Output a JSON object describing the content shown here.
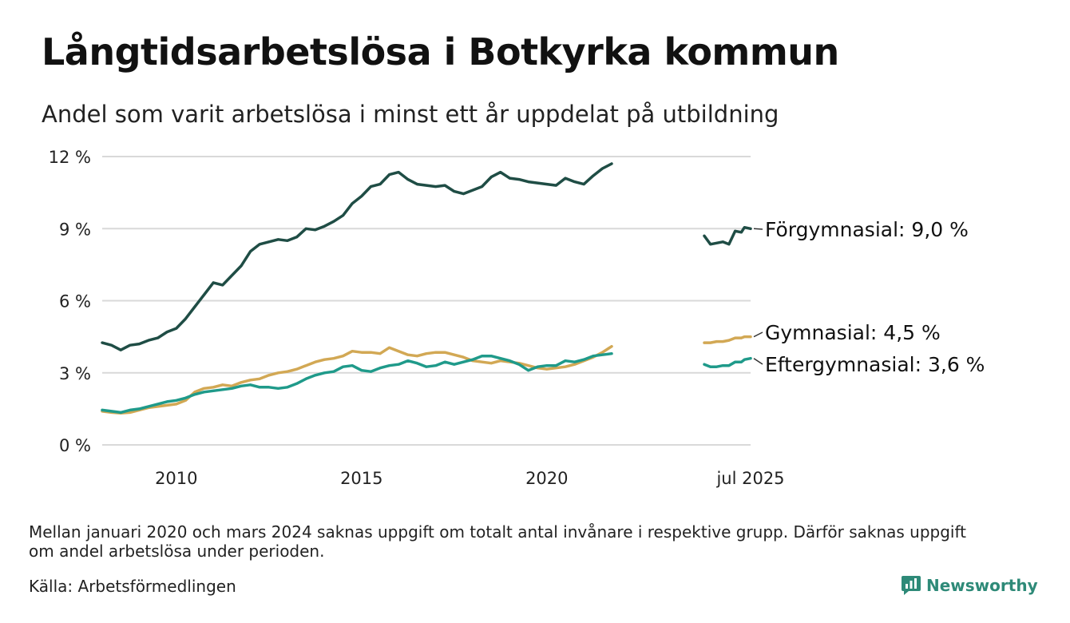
{
  "title": "Långtidsarbetslösa i Botkyrka kommun",
  "subtitle": "Andel som varit arbetslösa i minst ett år uppdelat på utbildning",
  "note": "Mellan januari 2020 och mars 2024 saknas uppgift om totalt antal invånare i respektive grupp. Därför saknas uppgift om andel arbetslösa under perioden.",
  "source": "Källa: Arbetsförmedlingen",
  "brand": {
    "name": "Newsworthy",
    "icon": "newsworthy-logo-icon",
    "color": "#2e8a78"
  },
  "chart_data": {
    "type": "line",
    "title": "Långtidsarbetslösa i Botkyrka kommun",
    "subtitle": "Andel som varit arbetslösa i minst ett år uppdelat på utbildning",
    "x_range": [
      "2008-01",
      "2025-07"
    ],
    "x_ticks": [
      {
        "date": "2010-01",
        "label": "2010"
      },
      {
        "date": "2015-01",
        "label": "2015"
      },
      {
        "date": "2020-01",
        "label": "2020"
      },
      {
        "date": "2025-07",
        "label": "jul 2025"
      }
    ],
    "ylim": [
      0,
      12
    ],
    "y_ticks": [
      {
        "value": 0,
        "label": "0 %"
      },
      {
        "value": 3,
        "label": "3 %"
      },
      {
        "value": 6,
        "label": "6 %"
      },
      {
        "value": 9,
        "label": "9 %"
      },
      {
        "value": 12,
        "label": "12 %"
      }
    ],
    "grid": "horizontal",
    "legend": "direct labels at right",
    "series": [
      {
        "name": "Förgymnasial",
        "label": "Förgymnasial: 9,0 %",
        "color": "#1f4d45",
        "segments": [
          [
            [
              "2008-01",
              4.25
            ],
            [
              "2008-04",
              4.15
            ],
            [
              "2008-07",
              3.95
            ],
            [
              "2008-10",
              4.15
            ],
            [
              "2009-01",
              4.2
            ],
            [
              "2009-04",
              4.35
            ],
            [
              "2009-07",
              4.45
            ],
            [
              "2009-10",
              4.7
            ],
            [
              "2010-01",
              4.85
            ],
            [
              "2010-04",
              5.25
            ],
            [
              "2010-07",
              5.75
            ],
            [
              "2010-10",
              6.25
            ],
            [
              "2011-01",
              6.75
            ],
            [
              "2011-04",
              6.65
            ],
            [
              "2011-07",
              7.05
            ],
            [
              "2011-10",
              7.45
            ],
            [
              "2012-01",
              8.05
            ],
            [
              "2012-04",
              8.35
            ],
            [
              "2012-07",
              8.45
            ],
            [
              "2012-10",
              8.55
            ],
            [
              "2013-01",
              8.5
            ],
            [
              "2013-04",
              8.65
            ],
            [
              "2013-07",
              9.0
            ],
            [
              "2013-10",
              8.95
            ],
            [
              "2014-01",
              9.1
            ],
            [
              "2014-04",
              9.3
            ],
            [
              "2014-07",
              9.55
            ],
            [
              "2014-10",
              10.05
            ],
            [
              "2015-01",
              10.35
            ],
            [
              "2015-04",
              10.75
            ],
            [
              "2015-07",
              10.85
            ],
            [
              "2015-10",
              11.25
            ],
            [
              "2016-01",
              11.35
            ],
            [
              "2016-04",
              11.05
            ],
            [
              "2016-07",
              10.85
            ],
            [
              "2016-10",
              10.8
            ],
            [
              "2017-01",
              10.75
            ],
            [
              "2017-04",
              10.8
            ],
            [
              "2017-07",
              10.55
            ],
            [
              "2017-10",
              10.45
            ],
            [
              "2018-01",
              10.6
            ],
            [
              "2018-04",
              10.75
            ],
            [
              "2018-07",
              11.15
            ],
            [
              "2018-10",
              11.35
            ],
            [
              "2019-01",
              11.1
            ],
            [
              "2019-04",
              11.05
            ],
            [
              "2019-07",
              10.95
            ],
            [
              "2019-10",
              10.9
            ],
            [
              "2020-01",
              10.85
            ],
            [
              "2020-04",
              10.8
            ],
            [
              "2020-07",
              11.1
            ],
            [
              "2020-10",
              10.95
            ],
            [
              "2021-01",
              10.85
            ],
            [
              "2021-04",
              11.2
            ],
            [
              "2021-07",
              11.5
            ],
            [
              "2021-10",
              11.7
            ]
          ],
          [
            [
              "2024-04",
              8.7
            ],
            [
              "2024-06",
              8.35
            ],
            [
              "2024-08",
              8.4
            ],
            [
              "2024-10",
              8.45
            ],
            [
              "2024-12",
              8.35
            ],
            [
              "2025-02",
              8.9
            ],
            [
              "2025-04",
              8.85
            ],
            [
              "2025-05",
              9.05
            ],
            [
              "2025-07",
              9.0
            ]
          ]
        ]
      },
      {
        "name": "Gymnasial",
        "label": "Gymnasial: 4,5 %",
        "color": "#d2a854",
        "segments": [
          [
            [
              "2008-01",
              1.4
            ],
            [
              "2008-04",
              1.35
            ],
            [
              "2008-07",
              1.32
            ],
            [
              "2008-10",
              1.35
            ],
            [
              "2009-01",
              1.45
            ],
            [
              "2009-04",
              1.55
            ],
            [
              "2009-07",
              1.6
            ],
            [
              "2009-10",
              1.65
            ],
            [
              "2010-01",
              1.7
            ],
            [
              "2010-04",
              1.85
            ],
            [
              "2010-07",
              2.2
            ],
            [
              "2010-10",
              2.35
            ],
            [
              "2011-01",
              2.4
            ],
            [
              "2011-04",
              2.5
            ],
            [
              "2011-07",
              2.45
            ],
            [
              "2011-10",
              2.6
            ],
            [
              "2012-01",
              2.7
            ],
            [
              "2012-04",
              2.75
            ],
            [
              "2012-07",
              2.9
            ],
            [
              "2012-10",
              3.0
            ],
            [
              "2013-01",
              3.05
            ],
            [
              "2013-04",
              3.15
            ],
            [
              "2013-07",
              3.3
            ],
            [
              "2013-10",
              3.45
            ],
            [
              "2014-01",
              3.55
            ],
            [
              "2014-04",
              3.6
            ],
            [
              "2014-07",
              3.7
            ],
            [
              "2014-10",
              3.9
            ],
            [
              "2015-01",
              3.85
            ],
            [
              "2015-04",
              3.85
            ],
            [
              "2015-07",
              3.8
            ],
            [
              "2015-10",
              4.05
            ],
            [
              "2016-01",
              3.9
            ],
            [
              "2016-04",
              3.75
            ],
            [
              "2016-07",
              3.7
            ],
            [
              "2016-10",
              3.8
            ],
            [
              "2017-01",
              3.85
            ],
            [
              "2017-04",
              3.85
            ],
            [
              "2017-07",
              3.75
            ],
            [
              "2017-10",
              3.65
            ],
            [
              "2018-01",
              3.5
            ],
            [
              "2018-04",
              3.45
            ],
            [
              "2018-07",
              3.4
            ],
            [
              "2018-10",
              3.5
            ],
            [
              "2019-01",
              3.45
            ],
            [
              "2019-04",
              3.4
            ],
            [
              "2019-07",
              3.3
            ],
            [
              "2019-10",
              3.2
            ],
            [
              "2020-01",
              3.15
            ],
            [
              "2020-04",
              3.2
            ],
            [
              "2020-07",
              3.25
            ],
            [
              "2020-10",
              3.35
            ],
            [
              "2021-01",
              3.5
            ],
            [
              "2021-04",
              3.65
            ],
            [
              "2021-07",
              3.85
            ],
            [
              "2021-10",
              4.1
            ]
          ],
          [
            [
              "2024-04",
              4.25
            ],
            [
              "2024-06",
              4.25
            ],
            [
              "2024-08",
              4.3
            ],
            [
              "2024-10",
              4.3
            ],
            [
              "2024-12",
              4.35
            ],
            [
              "2025-02",
              4.45
            ],
            [
              "2025-04",
              4.45
            ],
            [
              "2025-05",
              4.5
            ],
            [
              "2025-07",
              4.5
            ]
          ]
        ]
      },
      {
        "name": "Eftergymnasial",
        "label": "Eftergymnasial: 3,6 %",
        "color": "#1f9a8a",
        "segments": [
          [
            [
              "2008-01",
              1.45
            ],
            [
              "2008-04",
              1.4
            ],
            [
              "2008-07",
              1.35
            ],
            [
              "2008-10",
              1.45
            ],
            [
              "2009-01",
              1.5
            ],
            [
              "2009-04",
              1.6
            ],
            [
              "2009-07",
              1.7
            ],
            [
              "2009-10",
              1.8
            ],
            [
              "2010-01",
              1.85
            ],
            [
              "2010-04",
              1.95
            ],
            [
              "2010-07",
              2.1
            ],
            [
              "2010-10",
              2.2
            ],
            [
              "2011-01",
              2.25
            ],
            [
              "2011-04",
              2.3
            ],
            [
              "2011-07",
              2.35
            ],
            [
              "2011-10",
              2.45
            ],
            [
              "2012-01",
              2.5
            ],
            [
              "2012-04",
              2.4
            ],
            [
              "2012-07",
              2.4
            ],
            [
              "2012-10",
              2.35
            ],
            [
              "2013-01",
              2.4
            ],
            [
              "2013-04",
              2.55
            ],
            [
              "2013-07",
              2.75
            ],
            [
              "2013-10",
              2.9
            ],
            [
              "2014-01",
              3.0
            ],
            [
              "2014-04",
              3.05
            ],
            [
              "2014-07",
              3.25
            ],
            [
              "2014-10",
              3.3
            ],
            [
              "2015-01",
              3.1
            ],
            [
              "2015-04",
              3.05
            ],
            [
              "2015-07",
              3.2
            ],
            [
              "2015-10",
              3.3
            ],
            [
              "2016-01",
              3.35
            ],
            [
              "2016-04",
              3.5
            ],
            [
              "2016-07",
              3.4
            ],
            [
              "2016-10",
              3.25
            ],
            [
              "2017-01",
              3.3
            ],
            [
              "2017-04",
              3.45
            ],
            [
              "2017-07",
              3.35
            ],
            [
              "2017-10",
              3.45
            ],
            [
              "2018-01",
              3.55
            ],
            [
              "2018-04",
              3.7
            ],
            [
              "2018-07",
              3.7
            ],
            [
              "2018-10",
              3.6
            ],
            [
              "2019-01",
              3.5
            ],
            [
              "2019-04",
              3.35
            ],
            [
              "2019-07",
              3.1
            ],
            [
              "2019-10",
              3.25
            ],
            [
              "2020-01",
              3.3
            ],
            [
              "2020-04",
              3.3
            ],
            [
              "2020-07",
              3.5
            ],
            [
              "2020-10",
              3.45
            ],
            [
              "2021-01",
              3.55
            ],
            [
              "2021-04",
              3.7
            ],
            [
              "2021-07",
              3.75
            ],
            [
              "2021-10",
              3.8
            ]
          ],
          [
            [
              "2024-04",
              3.35
            ],
            [
              "2024-06",
              3.25
            ],
            [
              "2024-08",
              3.25
            ],
            [
              "2024-10",
              3.3
            ],
            [
              "2024-12",
              3.3
            ],
            [
              "2025-02",
              3.45
            ],
            [
              "2025-04",
              3.45
            ],
            [
              "2025-05",
              3.55
            ],
            [
              "2025-07",
              3.6
            ]
          ]
        ]
      }
    ]
  }
}
